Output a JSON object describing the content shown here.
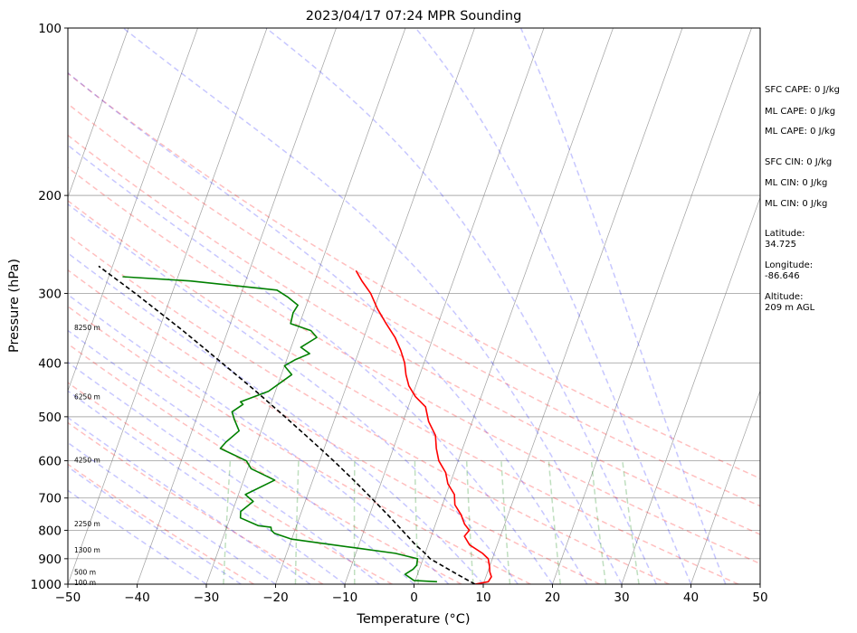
{
  "chart_data": {
    "type": "line",
    "title": "2023/04/17 07:24 MPR Sounding",
    "xlabel": "Temperature (°C)",
    "ylabel": "Pressure (hPa)",
    "x_scale": "linear, skewed",
    "y_scale": "log",
    "xlim": [
      -50,
      50
    ],
    "ylim": [
      1000,
      100
    ],
    "x_ticks": [
      -50,
      -40,
      -30,
      -20,
      -10,
      0,
      10,
      20,
      30,
      40,
      50
    ],
    "x_tick_labels": [
      "−50",
      "−40",
      "−30",
      "−20",
      "−10",
      "0",
      "10",
      "20",
      "30",
      "40",
      "50"
    ],
    "y_ticks": [
      1000,
      900,
      800,
      700,
      600,
      500,
      400,
      300,
      200,
      100
    ],
    "y_tick_labels": [
      "1000",
      "900",
      "800",
      "700",
      "600",
      "500",
      "400",
      "300",
      "200",
      "100"
    ],
    "grid": true,
    "series": [
      {
        "color": "#ff0000",
        "style": "solid",
        "points": [
          [
            1000,
            8.8
          ],
          [
            990,
            10.6
          ],
          [
            970,
            10.8
          ],
          [
            950,
            10.3
          ],
          [
            930,
            10.0
          ],
          [
            900,
            9.4
          ],
          [
            880,
            8.3
          ],
          [
            850,
            6.0
          ],
          [
            820,
            4.8
          ],
          [
            800,
            5.2
          ],
          [
            780,
            4.2
          ],
          [
            750,
            3.2
          ],
          [
            720,
            1.8
          ],
          [
            690,
            1.2
          ],
          [
            660,
            -0.3
          ],
          [
            630,
            -1.2
          ],
          [
            600,
            -2.8
          ],
          [
            570,
            -3.8
          ],
          [
            540,
            -4.6
          ],
          [
            510,
            -6.3
          ],
          [
            480,
            -7.5
          ],
          [
            460,
            -9.5
          ],
          [
            440,
            -11.0
          ],
          [
            420,
            -12.0
          ],
          [
            400,
            -12.8
          ],
          [
            380,
            -14.0
          ],
          [
            360,
            -15.5
          ],
          [
            340,
            -17.5
          ],
          [
            320,
            -19.5
          ],
          [
            300,
            -21.3
          ],
          [
            285,
            -23.2
          ],
          [
            273,
            -24.6
          ]
        ]
      },
      {
        "color": "#008000",
        "style": "solid",
        "points": [
          [
            990,
            3.2
          ],
          [
            985,
            -0.2
          ],
          [
            960,
            -1.8
          ],
          [
            940,
            -0.9
          ],
          [
            925,
            -0.6
          ],
          [
            900,
            -0.8
          ],
          [
            880,
            -4.3
          ],
          [
            860,
            -10.5
          ],
          [
            830,
            -20.0
          ],
          [
            810,
            -22.8
          ],
          [
            800,
            -23.4
          ],
          [
            790,
            -23.6
          ],
          [
            785,
            -25.5
          ],
          [
            760,
            -28.5
          ],
          [
            740,
            -28.8
          ],
          [
            710,
            -27.5
          ],
          [
            690,
            -29.0
          ],
          [
            650,
            -25.5
          ],
          [
            620,
            -29.5
          ],
          [
            600,
            -30.6
          ],
          [
            570,
            -35.0
          ],
          [
            555,
            -34.5
          ],
          [
            530,
            -33.2
          ],
          [
            505,
            -34.5
          ],
          [
            490,
            -35.2
          ],
          [
            475,
            -34.0
          ],
          [
            470,
            -34.5
          ],
          [
            450,
            -31.0
          ],
          [
            420,
            -28.5
          ],
          [
            405,
            -30.0
          ],
          [
            395,
            -28.8
          ],
          [
            385,
            -27.0
          ],
          [
            375,
            -28.6
          ],
          [
            360,
            -26.8
          ],
          [
            350,
            -28.0
          ],
          [
            340,
            -31.3
          ],
          [
            325,
            -31.5
          ],
          [
            315,
            -31.2
          ],
          [
            305,
            -33.0
          ],
          [
            296,
            -35.0
          ],
          [
            285,
            -48.0
          ],
          [
            280,
            -58.0
          ]
        ]
      },
      {
        "color": "#000000",
        "style": "dashed",
        "points": [
          [
            1000,
            8.8
          ],
          [
            970,
            6.5
          ],
          [
            930,
            3.4
          ],
          [
            900,
            1.0
          ],
          [
            880,
            0.0
          ],
          [
            850,
            -1.8
          ],
          [
            800,
            -4.5
          ],
          [
            750,
            -7.4
          ],
          [
            700,
            -10.6
          ],
          [
            650,
            -14.1
          ],
          [
            600,
            -18.0
          ],
          [
            550,
            -22.4
          ],
          [
            500,
            -27.3
          ],
          [
            450,
            -32.8
          ],
          [
            400,
            -39.2
          ],
          [
            350,
            -46.5
          ],
          [
            300,
            -55.3
          ],
          [
            268,
            -62.0
          ]
        ]
      }
    ],
    "height_labels": [
      {
        "text": "100 m",
        "p": 992
      },
      {
        "text": "500 m",
        "p": 950
      },
      {
        "text": "1300 m",
        "p": 867
      },
      {
        "text": "2250 m",
        "p": 778
      },
      {
        "text": "4250 m",
        "p": 598
      },
      {
        "text": "6250 m",
        "p": 460
      },
      {
        "text": "8250 m",
        "p": 345
      }
    ],
    "info_lines": [
      "SFC CAPE: 0 J/kg",
      "ML CAPE: 0 J/kg",
      "ML CAPE: 0 J/kg",
      "SFC CIN: 0 J/kg",
      "ML CIN: 0 J/kg",
      "ML CIN: 0 J/kg",
      "Latitude:",
      "34.725",
      "Longitude:",
      "-86.646",
      "Altitude:",
      "209 m AGL"
    ],
    "reference_lines": {
      "isotherms": {
        "color": "#808080",
        "style": "solid"
      },
      "dry_adiabats": {
        "color": "#ff0000",
        "style": "dashed",
        "theta_K": [
          250,
          260,
          270,
          280,
          290,
          300,
          310,
          320,
          330,
          340,
          350,
          360
        ]
      },
      "moist_adiabats": {
        "color": "#0000ff",
        "style": "dashed",
        "start_T": [
          -30,
          -25,
          -20,
          -15,
          -10,
          -5,
          0,
          5,
          10,
          15,
          20,
          25,
          30,
          35,
          40,
          45
        ]
      },
      "mixing_ratio": {
        "color": "#008000",
        "style": "dashed",
        "g_per_kg": [
          0.4,
          1,
          2,
          4,
          7,
          10,
          16,
          24,
          32
        ]
      }
    }
  }
}
